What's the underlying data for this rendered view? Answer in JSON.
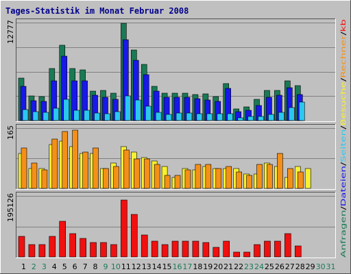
{
  "chart_data": {
    "type": "bar",
    "title": "Tages-Statistik im Monat Februar 2008",
    "categories": [
      "1",
      "2",
      "3",
      "4",
      "5",
      "6",
      "7",
      "8",
      "9",
      "10",
      "11",
      "12",
      "13",
      "14",
      "15",
      "16",
      "17",
      "18",
      "19",
      "20",
      "21",
      "22",
      "23",
      "24",
      "25",
      "26",
      "27",
      "28",
      "29",
      "30",
      "31"
    ],
    "weekend_days": [
      "2",
      "3",
      "9",
      "10",
      "16",
      "17",
      "23",
      "24",
      "30",
      "31"
    ],
    "colors": {
      "anfragen": "#1a7a55",
      "dateien": "#1818e8",
      "seiten": "#2ac8f0",
      "besuche": "#f8f030",
      "rechner": "#f49018",
      "kb": "#f01010",
      "weekday_label": "#000000",
      "weekend_label": "#1a7a55",
      "panel_bg": "#c0c0c0",
      "grid": "#808080",
      "title_color": "#00008b"
    },
    "panels": [
      {
        "id": "hits",
        "ytick": "12777",
        "ymax": 12777,
        "series": [
          {
            "key": "anfragen",
            "values": [
              5500,
              3200,
              3100,
              6800,
              9800,
              6800,
              6600,
              3800,
              3900,
              3600,
              12700,
              9200,
              7300,
              4500,
              3600,
              3600,
              3600,
              3400,
              3500,
              3100,
              4800,
              1500,
              1800,
              2800,
              3900,
              3900,
              5200,
              4600,
              null,
              null,
              null
            ]
          },
          {
            "key": "dateien",
            "values": [
              4500,
              2600,
              2500,
              5200,
              8400,
              5200,
              5200,
              3300,
              3000,
              2800,
              10500,
              7900,
              6000,
              3800,
              3000,
              3000,
              3000,
              2900,
              2700,
              2500,
              4200,
              1200,
              1300,
              2000,
              3000,
              3300,
              4300,
              3400,
              null,
              null,
              null
            ]
          },
          {
            "key": "seiten",
            "values": [
              1400,
              1200,
              1100,
              1600,
              2800,
              1300,
              1300,
              1000,
              900,
              1200,
              3200,
              2700,
              1900,
              1100,
              800,
              1000,
              1000,
              900,
              900,
              900,
              900,
              400,
              500,
              500,
              800,
              1100,
              1700,
              2400,
              null,
              null,
              null
            ]
          }
        ]
      },
      {
        "id": "visits",
        "ytick": "165",
        "ymax": 165,
        "series": [
          {
            "key": "besuche",
            "values": [
              95,
              55,
              55,
              120,
              130,
              115,
              95,
              95,
              55,
              70,
              115,
              100,
              85,
              75,
              60,
              30,
              55,
              50,
              60,
              55,
              55,
              55,
              40,
              40,
              70,
              60,
              30,
              60,
              55,
              null,
              null
            ]
          },
          {
            "key": "rechner",
            "values": [
              110,
              70,
              50,
              135,
              155,
              160,
              100,
              110,
              55,
              60,
              105,
              80,
              80,
              65,
              35,
              35,
              50,
              65,
              65,
              55,
              60,
              45,
              35,
              65,
              65,
              95,
              55,
              45,
              null,
              null,
              null
            ]
          }
        ]
      },
      {
        "id": "kb",
        "ytick": "195126",
        "ymax": 195126,
        "series": [
          {
            "key": "kb",
            "values": [
              65000,
              40000,
              40000,
              65000,
              115000,
              75000,
              60000,
              45000,
              45000,
              40000,
              182000,
              135000,
              70000,
              50000,
              40000,
              50000,
              50000,
              50000,
              45000,
              30000,
              50000,
              15000,
              15000,
              40000,
              50000,
              50000,
              75000,
              35000,
              null,
              null,
              null
            ]
          }
        ]
      }
    ],
    "legend": {
      "top": [
        "Anfragen",
        "/",
        "Dateien",
        "/",
        "Seiten",
        "/",
        "Besuche",
        "/",
        "Rechner",
        "/",
        "kb"
      ]
    }
  }
}
